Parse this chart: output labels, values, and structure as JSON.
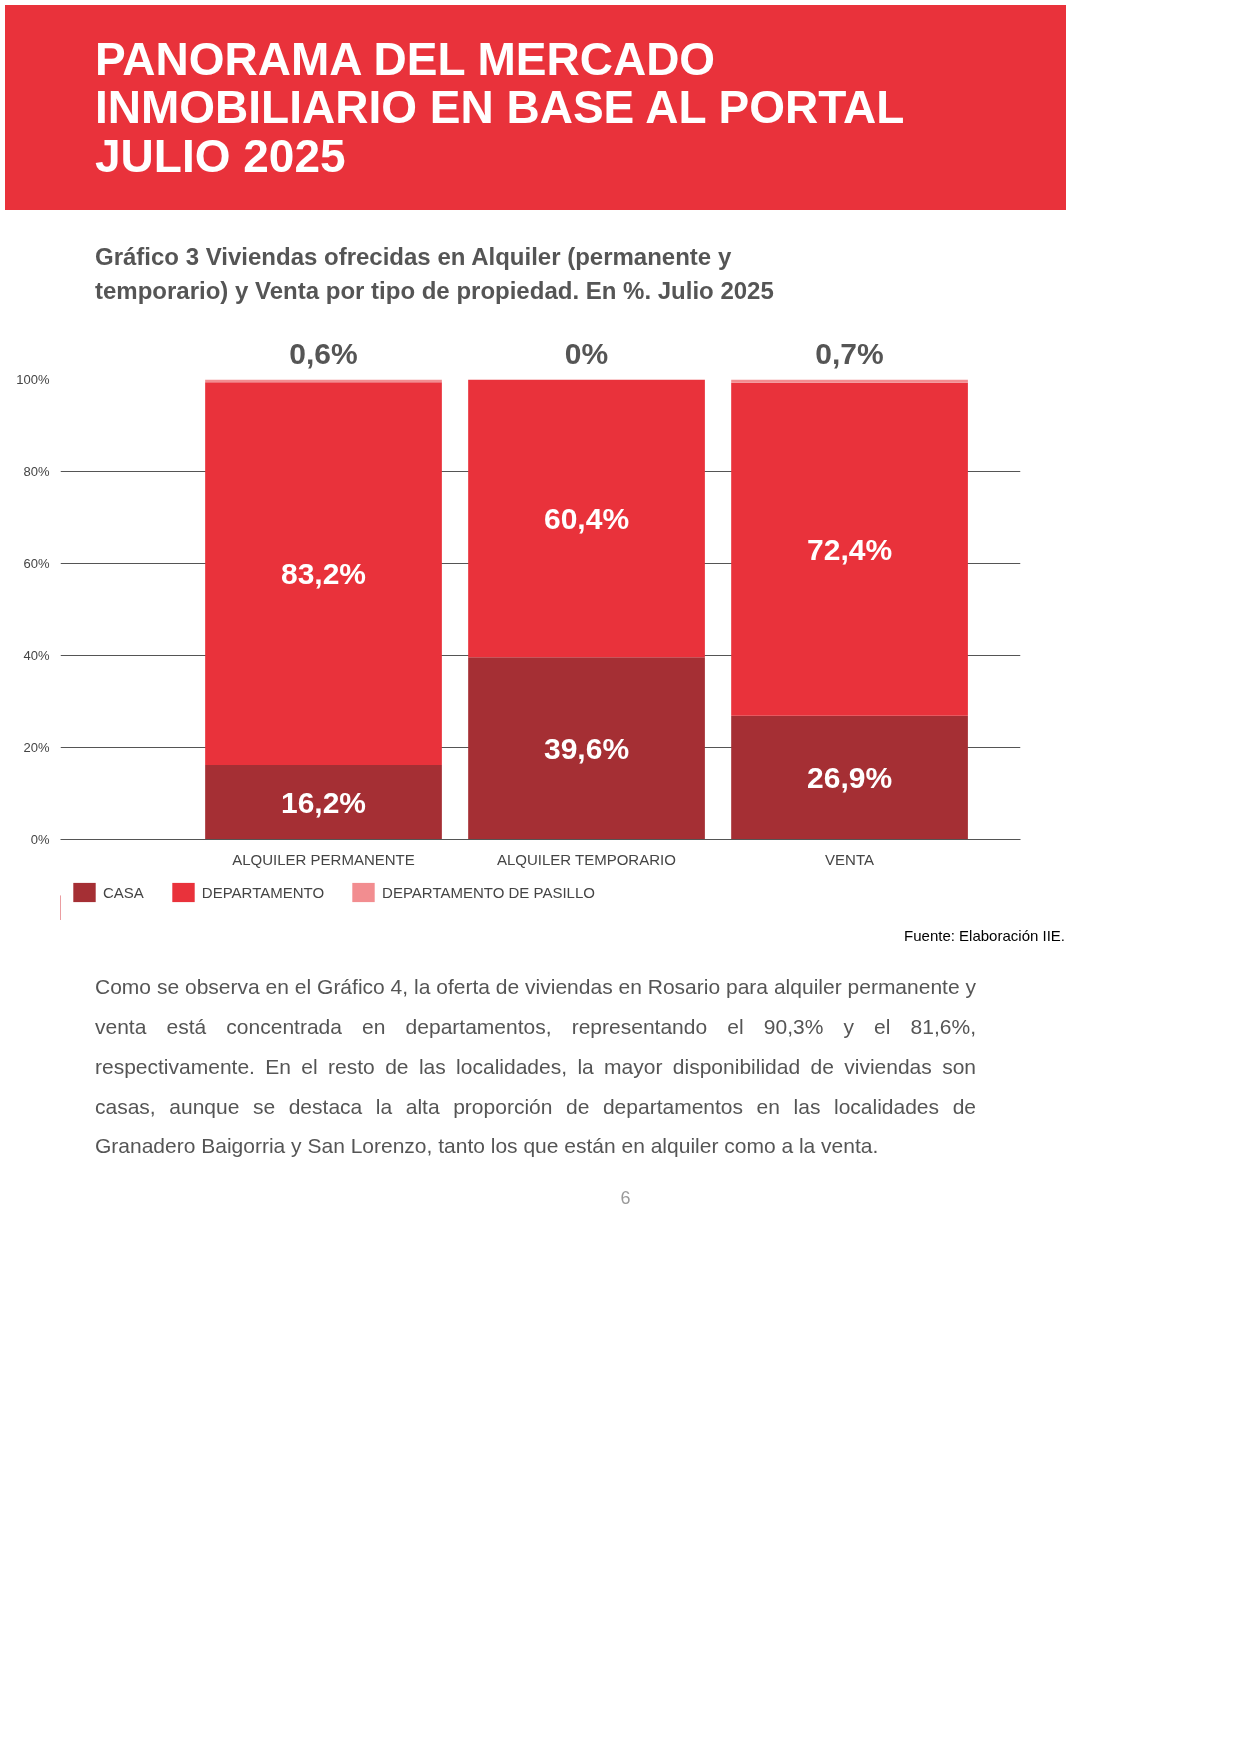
{
  "chart_data": {
    "type": "bar",
    "stacked": true,
    "title": "PANORAMA DEL MERCADO INMOBILIARIO EN BASE AL PORTAL JULIO 2025",
    "subtitle": "Gráfico 3 Viviendas ofrecidas en Alquiler (permanente y temporario) y Venta por tipo de propiedad. En %. Julio 2025",
    "categories": [
      "ALQUILER PERMANENTE",
      "ALQUILER TEMPORARIO",
      "VENTA"
    ],
    "series": [
      {
        "name": "CASA",
        "color": "#a52f34",
        "values": [
          16.2,
          39.6,
          26.9
        ],
        "value_labels": [
          "16,2%",
          "39,6%",
          "26,9%"
        ]
      },
      {
        "name": "DEPARTAMENTO",
        "color": "#e9323b",
        "values": [
          83.2,
          60.4,
          72.4
        ],
        "value_labels": [
          "83,2%",
          "60,4%",
          "72,4%"
        ]
      },
      {
        "name": "DEPARTAMENTO DE PASILLO",
        "color": "#f28d90",
        "values": [
          0.6,
          0,
          0.7
        ],
        "value_labels": [
          "0,6%",
          "0%",
          "0,7%"
        ]
      }
    ],
    "ylim": [
      0,
      100
    ],
    "yticks": [
      {
        "value": 0,
        "label": "0%"
      },
      {
        "value": 20,
        "label": "20%"
      },
      {
        "value": 40,
        "label": "40%"
      },
      {
        "value": 60,
        "label": "60%"
      },
      {
        "value": 80,
        "label": "80%"
      },
      {
        "value": 100,
        "label": "100%"
      }
    ],
    "grid": "y",
    "legend": "bottom left",
    "annotations": [
      "Fuente: Elaboración IIE.",
      "Como se observa en el Gráfico 4, la oferta de viviendas en Rosario para alquiler permanente y venta está concentrada en departamentos, representando el 90,3% y el 81,6%, respectivamente. En el resto de las localidades, la mayor disponibilidad de viviendas son casas, aunque se destaca la alta proporción de departamentos en las localidades de Granadero Baigorria y San Lorenzo, tanto los que están en alquiler como a la venta.",
      "6"
    ]
  }
}
